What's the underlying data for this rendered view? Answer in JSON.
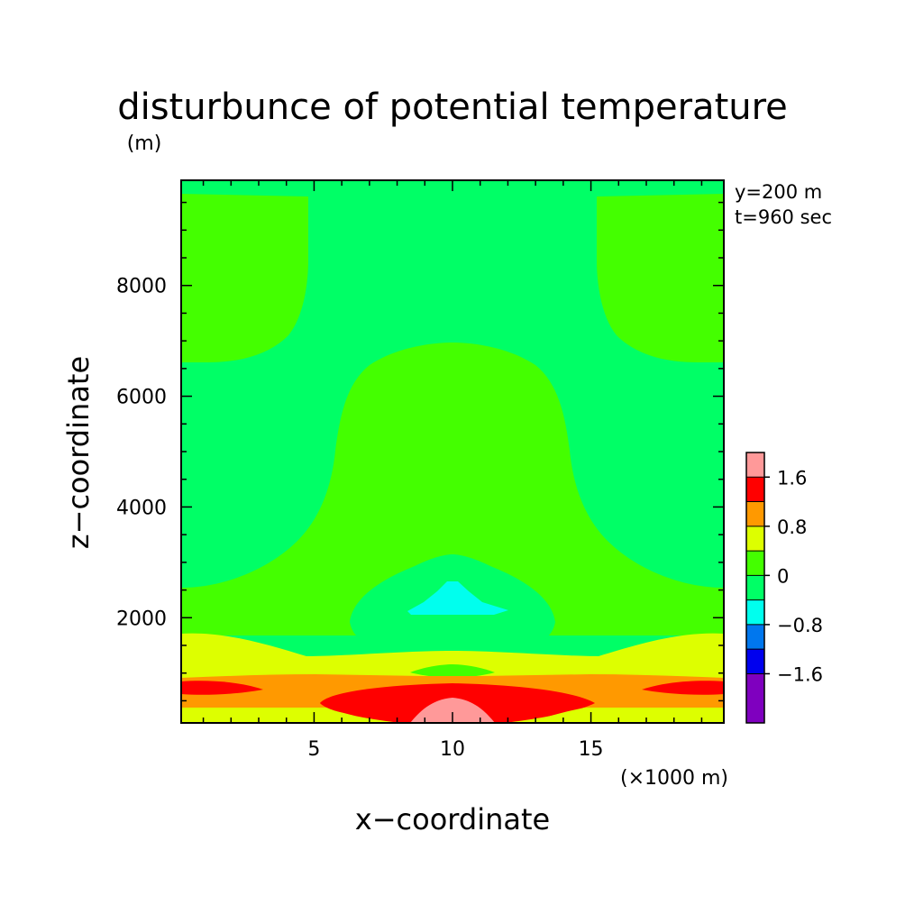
{
  "chart_data": {
    "type": "heatmap",
    "title": "disturbunce of potential temperature",
    "y_unit": "(m)",
    "x_unit": "(×1000 m)",
    "xlabel": "x−coordinate",
    "ylabel": "z−coordinate",
    "annotations": [
      "y=200 m",
      "t=960 sec"
    ],
    "xlim": [
      0.2,
      19.8
    ],
    "ylim": [
      100,
      9900
    ],
    "x_ticks": [
      5,
      10,
      15
    ],
    "x_tick_labels": [
      "5",
      "10",
      "15"
    ],
    "y_ticks": [
      2000,
      4000,
      6000,
      8000
    ],
    "y_tick_labels": [
      "2000",
      "4000",
      "6000",
      "8000"
    ],
    "grid": false,
    "legend_position": "right",
    "colorbar": {
      "boundaries": [
        -2.4,
        -1.6,
        -1.2,
        -0.8,
        -0.4,
        0,
        0.4,
        0.8,
        1.2,
        1.6,
        2.0
      ],
      "colors": [
        "#7f00bf",
        "#0000ee",
        "#0077ee",
        "#00ffee",
        "#00ff66",
        "#44ff00",
        "#ddff00",
        "#ff9900",
        "#ff0000",
        "#ff9999"
      ],
      "tick_values": [
        -1.6,
        -0.8,
        0,
        0.8,
        1.6
      ],
      "tick_labels": [
        "−1.6",
        "−0.8",
        "0",
        "0.8",
        "1.6"
      ]
    },
    "regions": [
      {
        "level_range": [
          -0.4,
          0
        ],
        "color": "#00ff66",
        "desc": "background field"
      },
      {
        "level_range": [
          0,
          0.4
        ],
        "color": "#44ff00",
        "desc": "upper corners and central plume"
      },
      {
        "level_range": [
          0.4,
          0.8
        ],
        "color": "#ddff00",
        "desc": "low-level layer"
      },
      {
        "level_range": [
          0.8,
          1.2
        ],
        "color": "#ff9900",
        "desc": "near-surface layer"
      },
      {
        "level_range": [
          1.2,
          1.6
        ],
        "color": "#ff0000",
        "desc": "surface warm core"
      },
      {
        "level_range": [
          1.6,
          2.0
        ],
        "color": "#ff9999",
        "desc": "warm core maximum"
      },
      {
        "level_range": [
          -0.8,
          -0.4
        ],
        "color": "#00ffee",
        "desc": "cold anomaly near z=2000-2500"
      }
    ]
  }
}
